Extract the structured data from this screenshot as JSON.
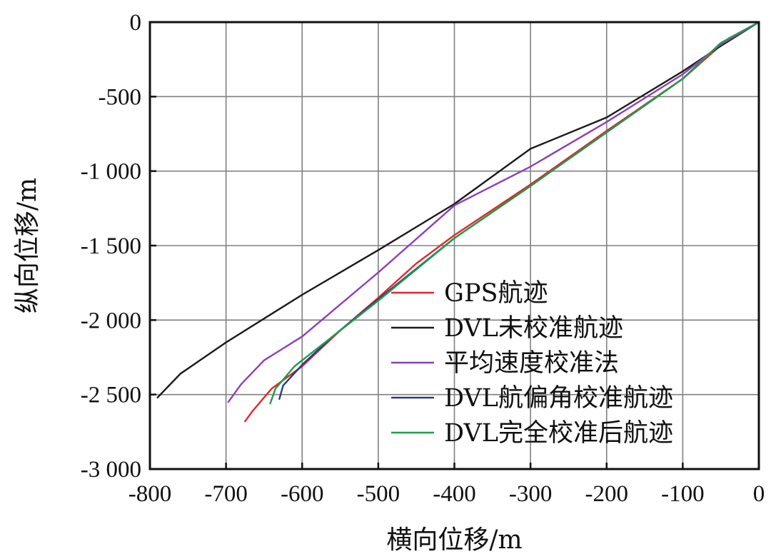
{
  "chart_data": {
    "type": "line",
    "title": "",
    "xlabel": "横向位移/m",
    "ylabel": "纵向位移/m",
    "xlim": [
      -800,
      0
    ],
    "ylim": [
      -3000,
      0
    ],
    "x_ticks": [
      -800,
      -700,
      -600,
      -500,
      -400,
      -300,
      -200,
      -100,
      0
    ],
    "x_tick_labels": [
      "-800",
      "-700",
      "-600",
      "-500",
      "-400",
      "-300",
      "-200",
      "-100",
      "0"
    ],
    "y_ticks": [
      0,
      -500,
      -1000,
      -1500,
      -2000,
      -2500,
      -3000
    ],
    "y_tick_labels": [
      "0",
      "-500",
      "-1 000",
      "-1 500",
      "-2 000",
      "-2 500",
      "-3 000"
    ],
    "grid": true,
    "legend_position": "lower-right",
    "series": [
      {
        "name": "GPS航迹",
        "color": "#e8262b",
        "points": [
          [
            0,
            0
          ],
          [
            -40,
            -110
          ],
          [
            -100,
            -380
          ],
          [
            -200,
            -730
          ],
          [
            -300,
            -1090
          ],
          [
            -400,
            -1430
          ],
          [
            -450,
            -1620
          ],
          [
            -500,
            -1850
          ],
          [
            -550,
            -2070
          ],
          [
            -600,
            -2310
          ],
          [
            -640,
            -2460
          ],
          [
            -665,
            -2610
          ],
          [
            -675,
            -2680
          ]
        ]
      },
      {
        "name": "DVL未校准航迹",
        "color": "#1a1a1a",
        "points": [
          [
            0,
            0
          ],
          [
            -50,
            -160
          ],
          [
            -100,
            -330
          ],
          [
            -200,
            -640
          ],
          [
            -300,
            -850
          ],
          [
            -400,
            -1220
          ],
          [
            -500,
            -1530
          ],
          [
            -600,
            -1830
          ],
          [
            -700,
            -2150
          ],
          [
            -760,
            -2360
          ],
          [
            -790,
            -2520
          ]
        ]
      },
      {
        "name": "平均速度校准法",
        "color": "#8f3fb5",
        "points": [
          [
            0,
            0
          ],
          [
            -50,
            -150
          ],
          [
            -100,
            -350
          ],
          [
            -200,
            -670
          ],
          [
            -300,
            -970
          ],
          [
            -400,
            -1230
          ],
          [
            -500,
            -1680
          ],
          [
            -600,
            -2110
          ],
          [
            -650,
            -2270
          ],
          [
            -680,
            -2430
          ],
          [
            -697,
            -2550
          ]
        ]
      },
      {
        "name": "DVL航偏角校准航迹",
        "color": "#2a3a8c",
        "points": [
          [
            0,
            0
          ],
          [
            -50,
            -140
          ],
          [
            -100,
            -380
          ],
          [
            -200,
            -740
          ],
          [
            -300,
            -1100
          ],
          [
            -400,
            -1450
          ],
          [
            -500,
            -1860
          ],
          [
            -560,
            -2110
          ],
          [
            -600,
            -2300
          ],
          [
            -625,
            -2440
          ],
          [
            -630,
            -2530
          ]
        ]
      },
      {
        "name": "DVL完全校准后航迹",
        "color": "#1e9e4a",
        "points": [
          [
            0,
            0
          ],
          [
            -50,
            -140
          ],
          [
            -100,
            -380
          ],
          [
            -200,
            -740
          ],
          [
            -300,
            -1100
          ],
          [
            -400,
            -1450
          ],
          [
            -500,
            -1870
          ],
          [
            -560,
            -2110
          ],
          [
            -610,
            -2310
          ],
          [
            -635,
            -2460
          ],
          [
            -642,
            -2560
          ]
        ]
      }
    ]
  }
}
